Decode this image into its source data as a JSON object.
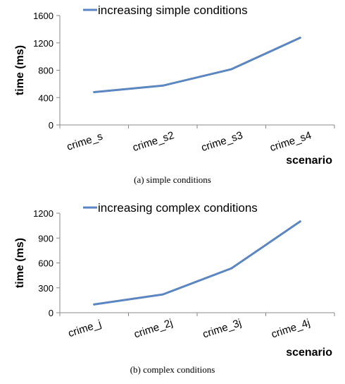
{
  "chart_data": [
    {
      "type": "line",
      "categories": [
        "crime_s",
        "crime_s2",
        "crime_s3",
        "crime_s4"
      ],
      "series": [
        {
          "name": "increasing simple conditions",
          "values": [
            480,
            575,
            815,
            1275
          ]
        }
      ],
      "title": "",
      "xlabel": "scenario",
      "ylabel": "time (ms)",
      "ylim": [
        0,
        1600
      ],
      "yticks": [
        "0",
        "400",
        "800",
        "1200",
        "1600"
      ],
      "caption": "(a) simple conditions",
      "legend_position": "top",
      "grid": false,
      "line_color": "#5b86c0"
    },
    {
      "type": "line",
      "categories": [
        "crime_j",
        "crime_2j",
        "crime_3j",
        "crime_4j"
      ],
      "series": [
        {
          "name": "increasing complex conditions",
          "values": [
            100,
            220,
            535,
            1100
          ]
        }
      ],
      "title": "",
      "xlabel": "scenario",
      "ylabel": "time (ms)",
      "ylim": [
        0,
        1200
      ],
      "yticks": [
        "0",
        "300",
        "600",
        "900",
        "1200"
      ],
      "caption": "(b) complex conditions",
      "legend_position": "top",
      "grid": false,
      "line_color": "#5b86c0"
    }
  ]
}
